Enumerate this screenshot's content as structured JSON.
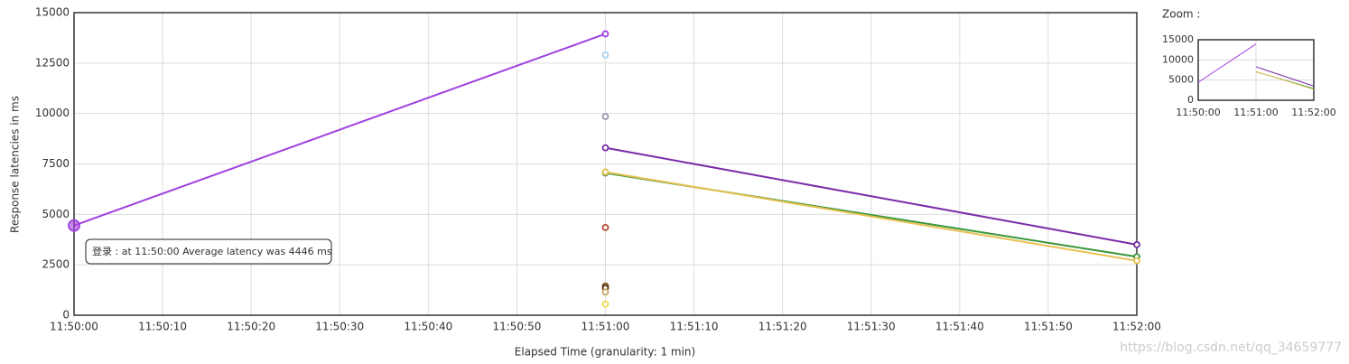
{
  "chart_data": [
    {
      "type": "line",
      "annotation": "登录 : at 11:50:00 Average latency was 4446 ms",
      "x_label": "Elapsed Time (granularity: 1 min)",
      "y_label": "Response latencies in ms",
      "x": [
        0,
        60,
        120
      ],
      "xlim": [
        0,
        120
      ],
      "xticks": [
        {
          "value": 0,
          "label": "11:50:00"
        },
        {
          "value": 10,
          "label": "11:50:10"
        },
        {
          "value": 20,
          "label": "11:50:20"
        },
        {
          "value": 30,
          "label": "11:50:30"
        },
        {
          "value": 40,
          "label": "11:50:40"
        },
        {
          "value": 50,
          "label": "11:50:50"
        },
        {
          "value": 60,
          "label": "11:51:00"
        },
        {
          "value": 70,
          "label": "11:51:10"
        },
        {
          "value": 80,
          "label": "11:51:20"
        },
        {
          "value": 90,
          "label": "11:51:30"
        },
        {
          "value": 100,
          "label": "11:51:40"
        },
        {
          "value": 110,
          "label": "11:51:50"
        },
        {
          "value": 120,
          "label": "11:52:00"
        }
      ],
      "ylim": [
        0,
        15000
      ],
      "yticks": [
        0,
        2500,
        5000,
        7500,
        10000,
        12500,
        15000
      ],
      "grid": true,
      "series": [
        {
          "color": "#a040e0",
          "values": [
            4446,
            13950,
            null
          ]
        },
        {
          "color": "#7a2ca8",
          "values": [
            null,
            8300,
            3500
          ]
        },
        {
          "color": "#3a963a",
          "values": [
            null,
            7050,
            2900
          ]
        },
        {
          "color": "#e8c050",
          "values": [
            null,
            7100,
            2700
          ]
        },
        {
          "color": "#a8d0f0",
          "values": [
            null,
            12900,
            null
          ]
        },
        {
          "color": "#9a94b4",
          "values": [
            null,
            9850,
            null
          ]
        },
        {
          "color": "#b04a34",
          "values": [
            null,
            4350,
            null
          ]
        },
        {
          "color": "#7a4a1a",
          "values": [
            null,
            1450,
            null
          ]
        },
        {
          "color": "#5a3010",
          "values": [
            null,
            1350,
            null
          ]
        },
        {
          "color": "#c8a868",
          "values": [
            null,
            1150,
            null
          ]
        },
        {
          "color": "#f0d850",
          "values": [
            null,
            550,
            null
          ]
        }
      ]
    },
    {
      "type": "line",
      "title": "Zoom :",
      "xlim": [
        0,
        120
      ],
      "xticks": [
        {
          "value": 0,
          "label": "11:50:00"
        },
        {
          "value": 60,
          "label": "11:51:00"
        },
        {
          "value": 120,
          "label": "11:52:00"
        }
      ],
      "ylim": [
        0,
        15000
      ],
      "yticks": [
        0,
        5000,
        10000,
        15000
      ],
      "grid": true
    }
  ],
  "watermark": "https://blog.csdn.net/qq_34659777"
}
